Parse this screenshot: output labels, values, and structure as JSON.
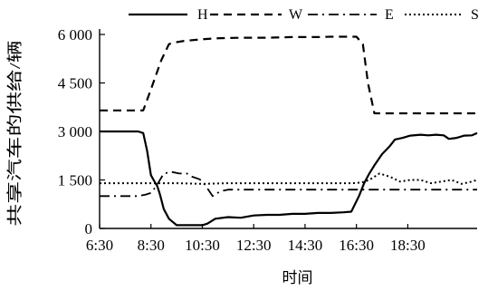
{
  "chart_data": {
    "type": "line",
    "title": "",
    "xlabel": "时间",
    "ylabel": "共享汽车的供给/辆",
    "x_unit": "hour of day",
    "xlim": [
      6.5,
      21.2
    ],
    "ylim": [
      0,
      6000
    ],
    "x_ticks": [
      {
        "label": "6:30",
        "value": 6.5
      },
      {
        "label": "8:30",
        "value": 8.5
      },
      {
        "label": "10:30",
        "value": 10.5
      },
      {
        "label": "12:30",
        "value": 12.5
      },
      {
        "label": "14:30",
        "value": 14.5
      },
      {
        "label": "16:30",
        "value": 16.5
      },
      {
        "label": "18:30",
        "value": 18.5
      }
    ],
    "y_ticks": [
      {
        "label": "0",
        "value": 0
      },
      {
        "label": "1 500",
        "value": 1500
      },
      {
        "label": "3 000",
        "value": 3000
      },
      {
        "label": "4 500",
        "value": 4500
      },
      {
        "label": "6 000",
        "value": 6000
      }
    ],
    "grid": false,
    "legend_position": "top",
    "series": [
      {
        "name": "H",
        "style": "solid",
        "color": "#000000",
        "x": [
          6.5,
          7.0,
          7.5,
          8.0,
          8.2,
          8.35,
          8.5,
          8.6,
          8.75,
          8.85,
          9.0,
          9.2,
          9.5,
          9.8,
          10.0,
          10.3,
          10.5,
          10.7,
          11.0,
          11.5,
          12.0,
          12.5,
          13.0,
          13.5,
          14.0,
          14.5,
          15.0,
          15.5,
          16.0,
          16.3,
          16.6,
          16.8,
          17.0,
          17.2,
          17.5,
          17.8,
          18.0,
          18.3,
          18.6,
          19.0,
          19.3,
          19.6,
          19.9,
          20.1,
          20.4,
          20.7,
          21.0,
          21.2
        ],
        "y": [
          3000,
          3000,
          3000,
          3000,
          2950,
          2400,
          1650,
          1500,
          1300,
          1050,
          600,
          300,
          100,
          100,
          100,
          100,
          100,
          150,
          300,
          350,
          330,
          400,
          420,
          420,
          450,
          450,
          480,
          480,
          500,
          520,
          1000,
          1400,
          1700,
          1950,
          2300,
          2550,
          2750,
          2800,
          2870,
          2900,
          2880,
          2900,
          2880,
          2770,
          2800,
          2870,
          2880,
          2950
        ]
      },
      {
        "name": "W",
        "style": "dashed",
        "color": "#000000",
        "x": [
          6.5,
          7.5,
          8.2,
          8.5,
          8.9,
          9.2,
          9.4,
          9.8,
          10.5,
          11.0,
          12.0,
          13.0,
          14.0,
          15.0,
          15.5,
          16.0,
          16.5,
          16.75,
          16.95,
          17.2,
          17.6,
          18.0,
          19.0,
          20.0,
          21.2
        ],
        "y": [
          3650,
          3650,
          3650,
          4300,
          5200,
          5700,
          5750,
          5800,
          5850,
          5880,
          5900,
          5900,
          5920,
          5920,
          5930,
          5930,
          5930,
          5700,
          4500,
          3560,
          3560,
          3560,
          3560,
          3560,
          3560
        ]
      },
      {
        "name": "E",
        "style": "dash-dot",
        "color": "#000000",
        "x": [
          6.5,
          7.5,
          8.0,
          8.3,
          8.5,
          8.7,
          9.0,
          9.3,
          9.6,
          9.9,
          10.1,
          10.4,
          10.6,
          10.9,
          11.2,
          11.5,
          12.0,
          13.0,
          14.0,
          15.0,
          16.0,
          16.5,
          17.0,
          17.5,
          18.0,
          19.0,
          20.0,
          21.2
        ],
        "y": [
          1000,
          1000,
          1000,
          1050,
          1100,
          1300,
          1700,
          1750,
          1700,
          1700,
          1600,
          1520,
          1350,
          1000,
          1150,
          1200,
          1200,
          1200,
          1200,
          1200,
          1200,
          1200,
          1200,
          1200,
          1200,
          1200,
          1200,
          1200
        ]
      },
      {
        "name": "S",
        "style": "dotted",
        "color": "#000000",
        "x": [
          6.5,
          7.5,
          8.5,
          9.5,
          10.5,
          11.5,
          12.5,
          13.5,
          14.5,
          15.5,
          16.3,
          16.7,
          17.0,
          17.4,
          17.8,
          18.2,
          18.6,
          19.0,
          19.4,
          19.8,
          20.2,
          20.6,
          21.0,
          21.2
        ],
        "y": [
          1400,
          1400,
          1400,
          1400,
          1380,
          1400,
          1400,
          1400,
          1400,
          1400,
          1400,
          1420,
          1500,
          1700,
          1600,
          1450,
          1500,
          1500,
          1400,
          1450,
          1500,
          1380,
          1450,
          1500
        ]
      }
    ]
  }
}
